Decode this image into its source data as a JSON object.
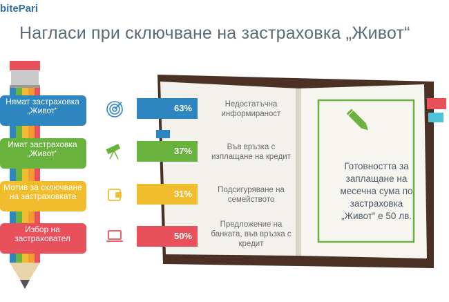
{
  "brand": "bitePari",
  "title": "Нагласи при сключване на застраховка „Живот“",
  "chart_data": {
    "type": "bar",
    "categories": [
      "Нямат застраховка „Живот“",
      "Имат застраховка „Живот“",
      "Мотив за сключване на застраховката",
      "Избор на застраховател"
    ],
    "category_lines": [
      [
        "Нямат застраховка",
        "„Живот“"
      ],
      [
        "Имат застраховка",
        "„Живот“"
      ],
      [
        "Мотив за сключване",
        "на застраховката"
      ],
      [
        "Избор на",
        "застраховател"
      ]
    ],
    "values": [
      63,
      37,
      31,
      50
    ],
    "value_labels": [
      "63%",
      "37%",
      "31%",
      "50%"
    ],
    "reasons": [
      [
        "Недостатъчна",
        "информираност"
      ],
      [
        "Във връзка с",
        "изплащане на кредит"
      ],
      [
        "Подсигуряване на",
        "семейството"
      ],
      [
        "Предложение на",
        "банката, във връзка с",
        "кредит"
      ]
    ],
    "colors": [
      "#2e86c1",
      "#6ab23e",
      "#f0bd2e",
      "#e8505b"
    ],
    "icons": [
      "target-icon",
      "telescope-icon",
      "wallet-icon",
      "laptop-icon"
    ]
  },
  "note_lines": [
    "Готовността за",
    "заплащане на",
    "месечна сума по",
    "застраховка",
    "„Живот“ е 50 лв."
  ]
}
